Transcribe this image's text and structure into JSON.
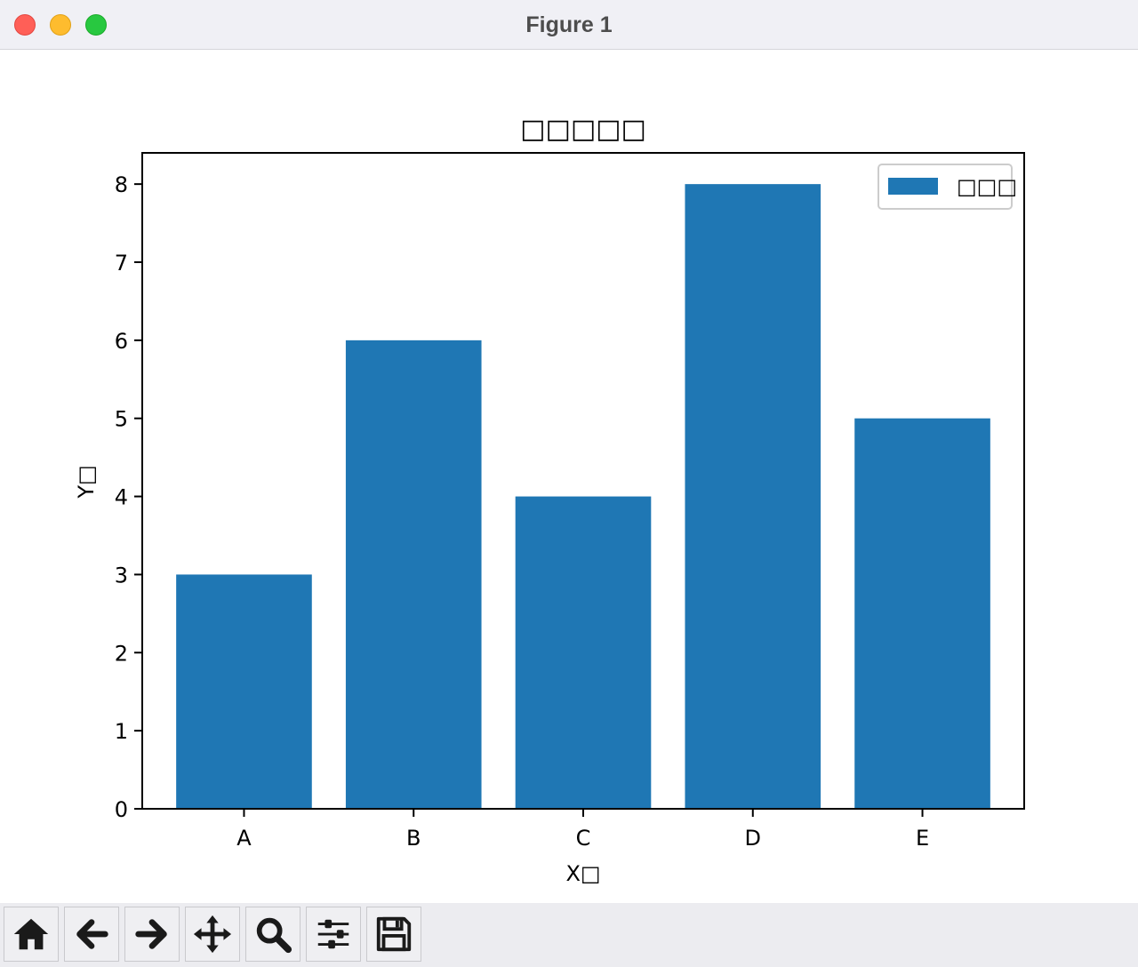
{
  "window": {
    "title": "Figure 1"
  },
  "toolbar": {
    "buttons": [
      {
        "name": "home-icon"
      },
      {
        "name": "back-arrow-icon"
      },
      {
        "name": "forward-arrow-icon"
      },
      {
        "name": "pan-move-icon"
      },
      {
        "name": "zoom-magnifier-icon"
      },
      {
        "name": "configure-subplots-icon"
      },
      {
        "name": "save-floppy-icon"
      }
    ]
  },
  "chart_data": {
    "type": "bar",
    "title": "□□□□□",
    "xlabel": "X□",
    "ylabel": "Y□",
    "categories": [
      "A",
      "B",
      "C",
      "D",
      "E"
    ],
    "series": [
      {
        "name": "□□□",
        "values": [
          3,
          6,
          4,
          8,
          5
        ],
        "color": "#1f77b4"
      }
    ],
    "ylim": [
      0,
      8.4
    ],
    "yticks": [
      "0",
      "1",
      "2",
      "3",
      "4",
      "5",
      "6",
      "7",
      "8"
    ],
    "grid": false,
    "legend": "upper-right"
  }
}
